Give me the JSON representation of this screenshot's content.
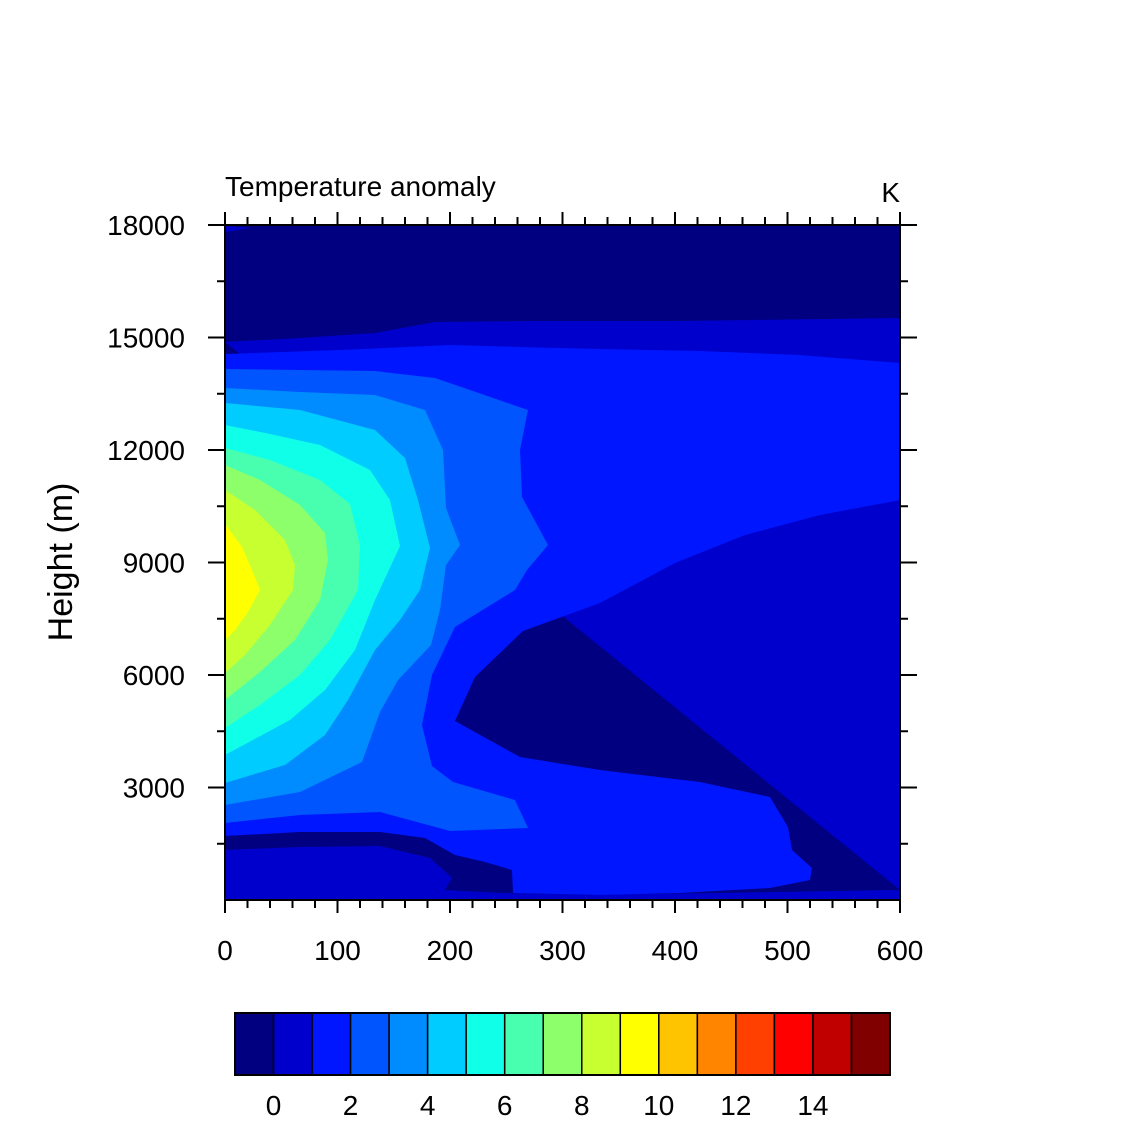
{
  "chart_data": {
    "type": "contour",
    "title": "Temperature anomaly",
    "units": "K",
    "ylabel": "Height (m)",
    "xlabel": "",
    "xlim": [
      0,
      600
    ],
    "ylim": [
      0,
      18000
    ],
    "x_ticks": [
      "0",
      "100",
      "200",
      "300",
      "400",
      "500",
      "600"
    ],
    "y_ticks": [
      "3000",
      "6000",
      "9000",
      "12000",
      "15000",
      "18000"
    ],
    "contour_levels": [
      0,
      1,
      2,
      3,
      4,
      5,
      6,
      7,
      8,
      9,
      10,
      11,
      12,
      13,
      14,
      15
    ],
    "colorbar_ticks": [
      "0",
      "2",
      "4",
      "6",
      "8",
      "10",
      "12",
      "14"
    ],
    "colors": [
      "#000080",
      "#0000cd",
      "#0016ff",
      "#0055ff",
      "#008cff",
      "#00ccff",
      "#10ffe8",
      "#48ffb0",
      "#8cff6a",
      "#c8ff30",
      "#ffff00",
      "#ffc400",
      "#ff8400",
      "#ff4000",
      "#ff0000",
      "#c00000",
      "#800000"
    ],
    "max_anomaly_location": {
      "x": 0,
      "y": 8300,
      "value": 10
    }
  }
}
